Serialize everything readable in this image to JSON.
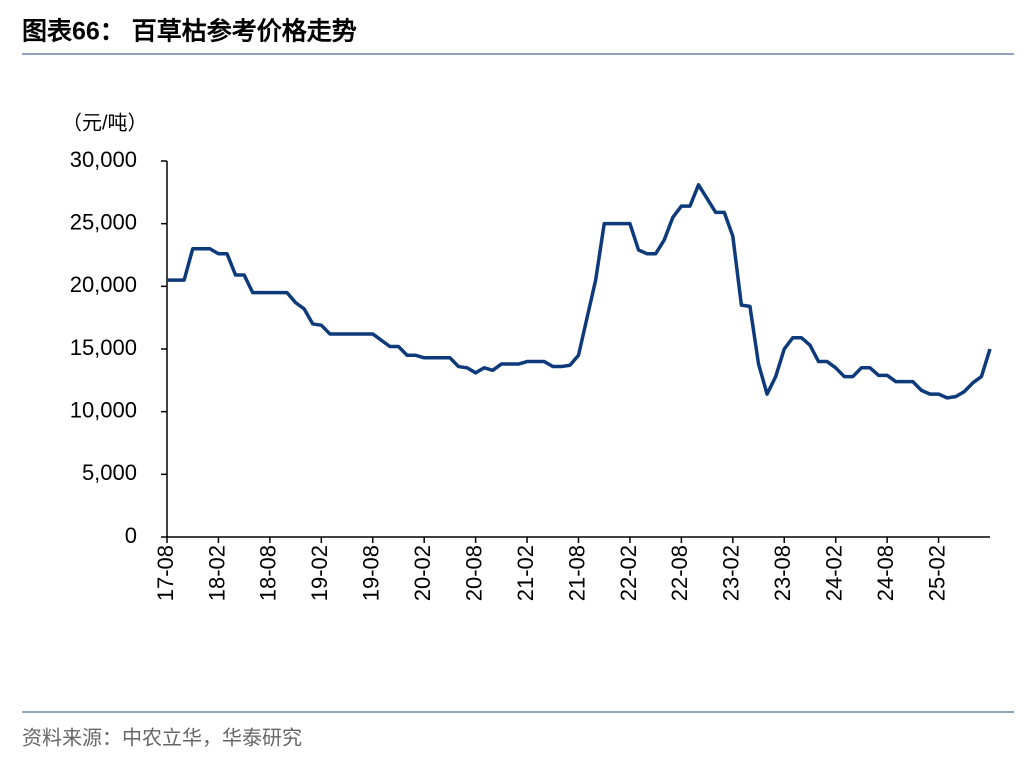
{
  "chart_data": {
    "type": "line",
    "title": "图表66：  百草枯参考价格走势",
    "unit_label": "（元/吨）",
    "source": "资料来源：中农立华，华泰研究",
    "categories": [
      "17-08",
      null,
      null,
      null,
      null,
      null,
      "18-02",
      null,
      null,
      null,
      null,
      null,
      "18-08",
      null,
      null,
      null,
      null,
      null,
      "19-02",
      null,
      null,
      null,
      null,
      null,
      "19-08",
      null,
      null,
      null,
      null,
      null,
      "20-02",
      null,
      null,
      null,
      null,
      null,
      "20-08",
      null,
      null,
      null,
      null,
      null,
      "21-02",
      null,
      null,
      null,
      null,
      null,
      "21-08",
      null,
      null,
      null,
      null,
      null,
      "22-02",
      null,
      null,
      null,
      null,
      null,
      "22-08",
      null,
      null,
      null,
      null,
      null,
      "23-02",
      null,
      null,
      null,
      null,
      null,
      "23-08",
      null,
      null,
      null,
      null,
      null,
      "24-02",
      null,
      null,
      null,
      null,
      null,
      "24-08",
      null,
      null,
      null,
      null,
      null,
      "25-02",
      null,
      null,
      null,
      null,
      null,
      null
    ],
    "series": [
      {
        "name": "百草枯",
        "color": "#0d3a7a",
        "values": [
          20500,
          20500,
          20500,
          23000,
          23000,
          23000,
          22600,
          22600,
          20900,
          20900,
          19500,
          19500,
          19500,
          19500,
          19500,
          18700,
          18200,
          17000,
          16900,
          16200,
          16200,
          16200,
          16200,
          16200,
          16200,
          15700,
          15200,
          15200,
          14500,
          14500,
          14300,
          14300,
          14300,
          14300,
          13600,
          13500,
          13100,
          13500,
          13300,
          13800,
          13800,
          13800,
          14000,
          14000,
          14000,
          13600,
          13600,
          13700,
          14500,
          17500,
          20500,
          25000,
          25000,
          25000,
          25000,
          22900,
          22600,
          22600,
          23700,
          25500,
          26400,
          26400,
          28100,
          27000,
          25900,
          25900,
          24000,
          18500,
          18400,
          13800,
          11400,
          12800,
          15000,
          15900,
          15900,
          15300,
          14000,
          14000,
          13500,
          12800,
          12800,
          13500,
          13500,
          12900,
          12900,
          12400,
          12400,
          12400,
          11700,
          11400,
          11400,
          11100,
          11200,
          11600,
          12300,
          12800,
          15000
        ]
      }
    ],
    "ylim": [
      0,
      30000
    ],
    "yticks": [
      0,
      {
        "value": 5000,
        "label": "5,000"
      },
      {
        "value": 10000,
        "label": "10,000"
      },
      {
        "value": 15000,
        "label": "15,000"
      },
      {
        "value": 20000,
        "label": "20,000"
      },
      {
        "value": 25000,
        "label": "25,000"
      },
      {
        "value": 30000,
        "label": "30,000"
      }
    ],
    "grid": false
  }
}
